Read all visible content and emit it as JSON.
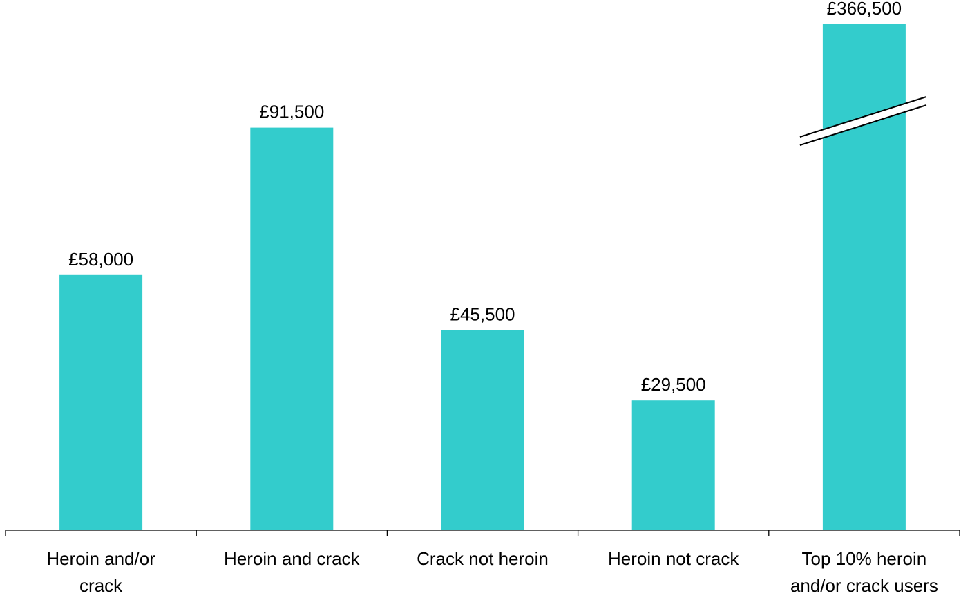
{
  "chart_data": {
    "type": "bar",
    "categories": [
      "Heroin and/or crack",
      "Heroin and crack",
      "Crack not heroin",
      "Heroin not crack",
      "Top 10% heroin and/or crack users"
    ],
    "category_lines": [
      [
        "Heroin and/or",
        "crack"
      ],
      [
        "Heroin and crack"
      ],
      [
        "Crack not heroin"
      ],
      [
        "Heroin not crack"
      ],
      [
        "Top 10% heroin",
        "and/or crack users"
      ]
    ],
    "values": [
      58000,
      91500,
      45500,
      29500,
      366500
    ],
    "value_labels": [
      "£58,000",
      "£91,500",
      "£45,500",
      "£29,500",
      "£366,500"
    ],
    "title": "",
    "xlabel": "",
    "ylabel": "",
    "ylim": [
      0,
      115000
    ],
    "axis_break": {
      "category_index": 4
    },
    "grid": false,
    "legend": "none",
    "colors": {
      "bar": "#33CCCC",
      "axis": "#000000",
      "text": "#000000"
    }
  }
}
